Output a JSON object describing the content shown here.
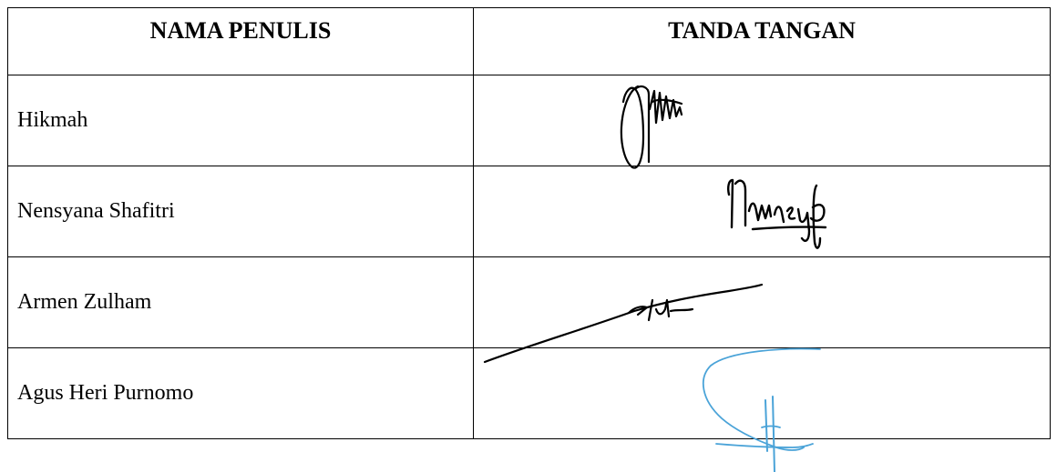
{
  "table": {
    "headers": {
      "name": "NAMA PENULIS",
      "signature": "TANDA TANGAN"
    },
    "rows": [
      {
        "name": "Hikmah",
        "signature": "handwritten-signature"
      },
      {
        "name": "Nensyana Shafitri",
        "signature": "handwritten-signature"
      },
      {
        "name": "Armen Zulham",
        "signature": "handwritten-signature"
      },
      {
        "name": "Agus Heri Purnomo",
        "signature": "handwritten-signature"
      }
    ]
  },
  "colors": {
    "border": "#000000",
    "ink": "#000000",
    "signature_blue": "#4aa3d8"
  }
}
